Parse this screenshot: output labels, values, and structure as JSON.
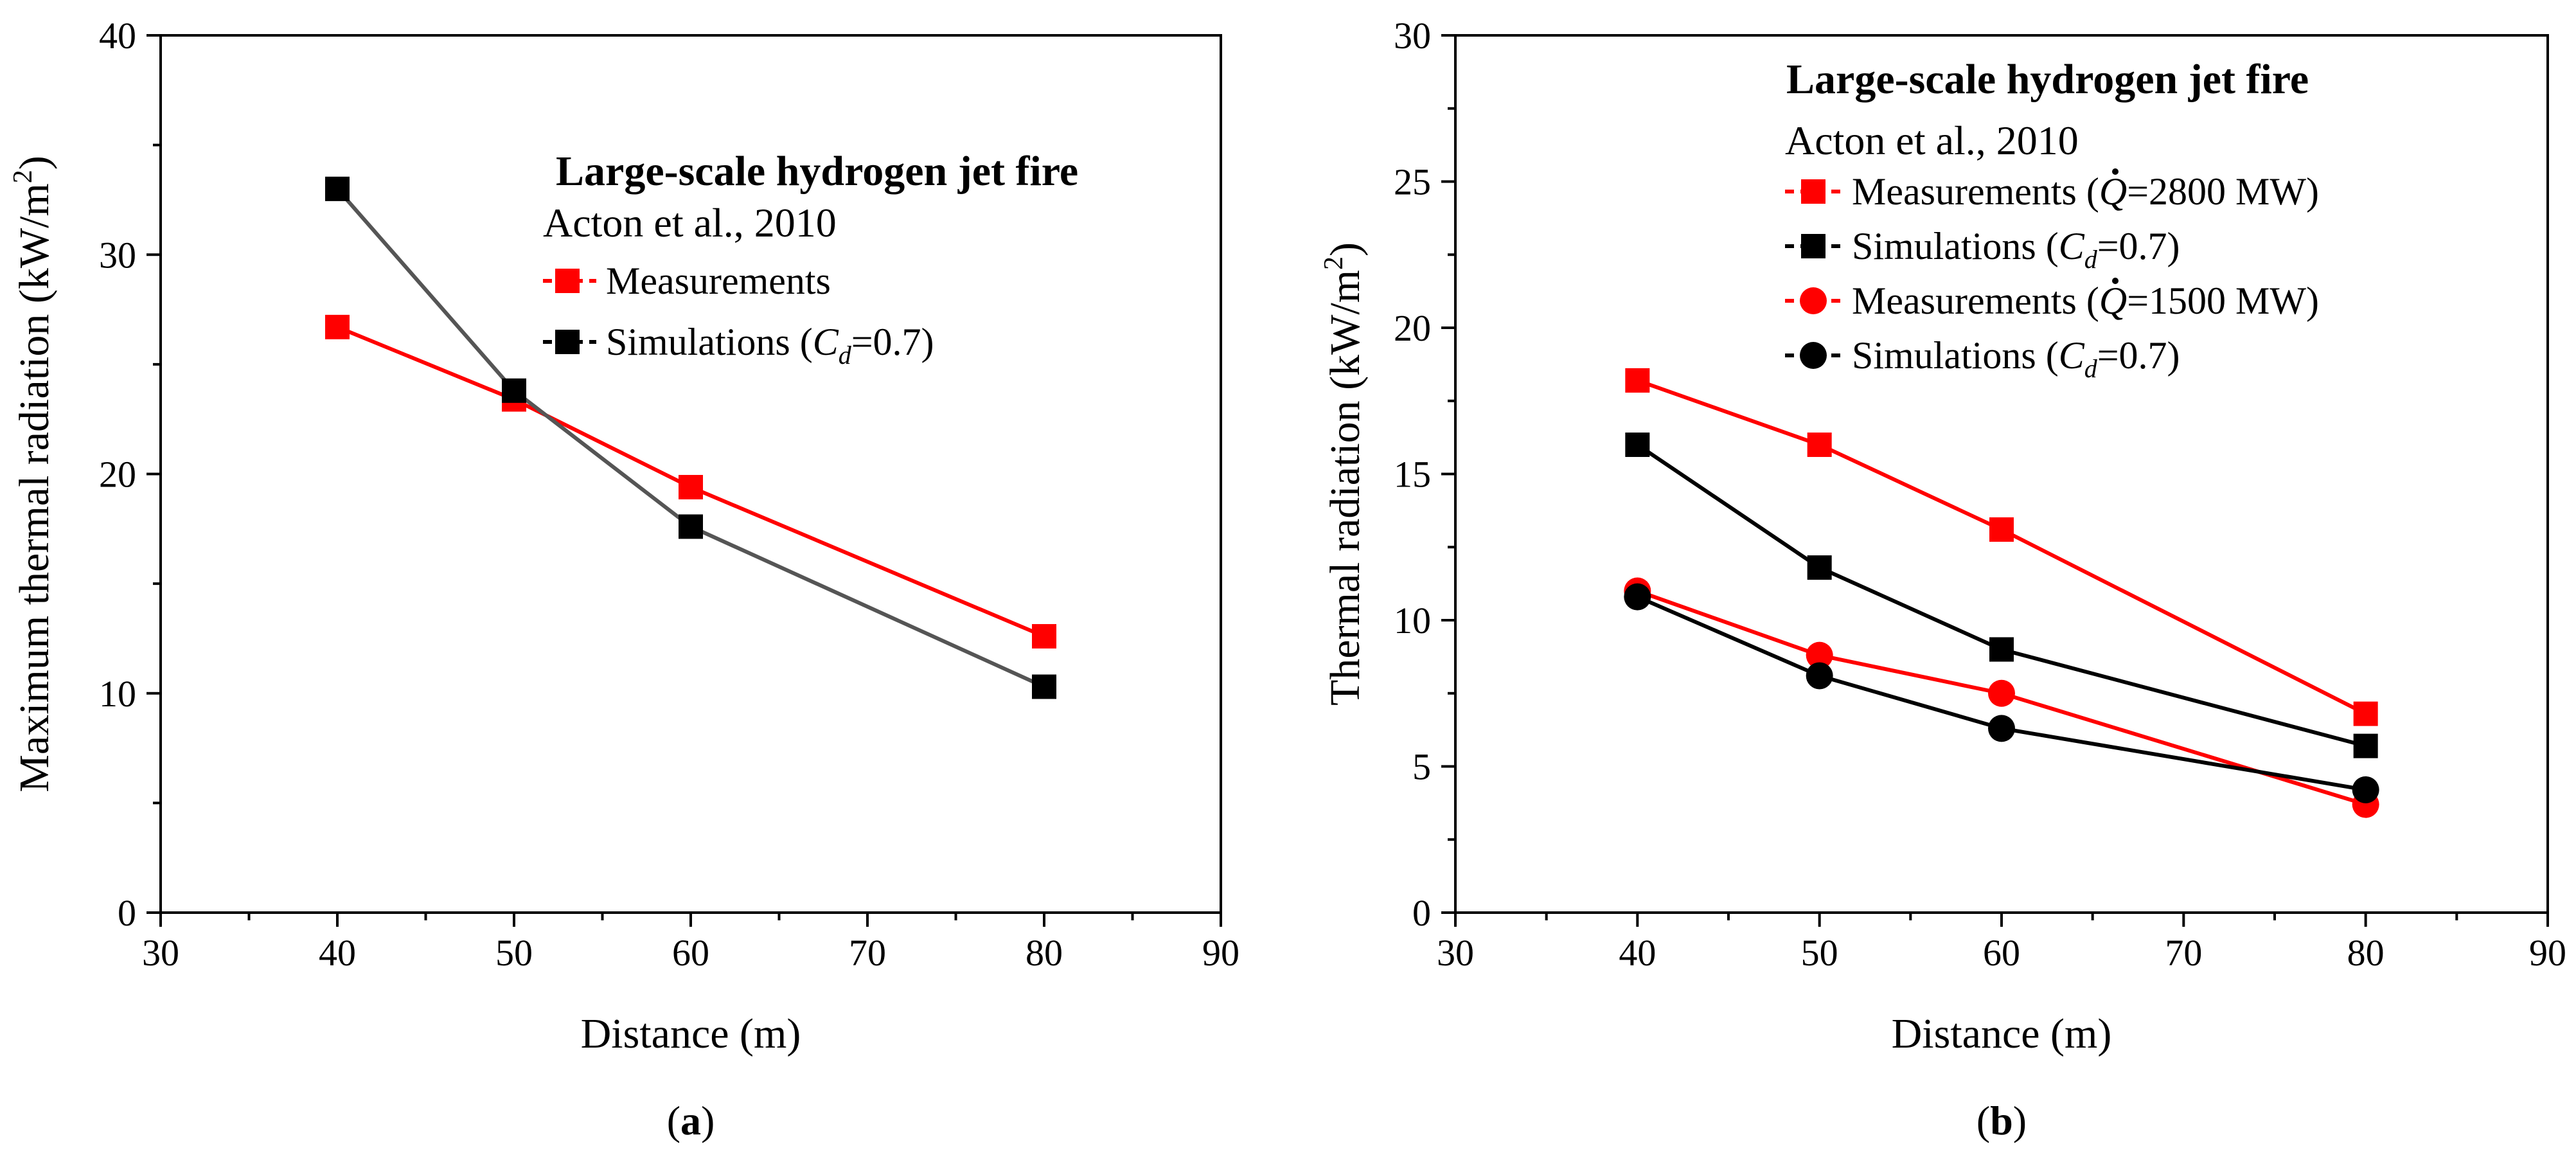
{
  "chart_data": [
    {
      "type": "line",
      "panel_label": "a",
      "xlabel": "Distance (m)",
      "ylabel": "Maximum thermal radiation (kW/m2)",
      "ylabel_main": "Maximum thermal radiation (kW/m",
      "ylabel_sup": "2",
      "ylabel_close": ")",
      "xlim": [
        30,
        90
      ],
      "ylim": [
        0,
        40
      ],
      "xticks": [
        30,
        40,
        50,
        60,
        70,
        80,
        90
      ],
      "yticks": [
        0,
        10,
        20,
        30,
        40
      ],
      "grid": false,
      "legend_position": "top-right",
      "legend_title": "Large-scale hydrogen jet fire",
      "legend_subtitle": "Acton et al., 2010",
      "series": [
        {
          "name": "Measurements",
          "legend_label": "Measurements",
          "color": "#ff0000",
          "marker": "square",
          "x": [
            40,
            50,
            60,
            80
          ],
          "y": [
            26.7,
            23.4,
            19.4,
            12.6
          ]
        },
        {
          "name": "Simulations (Cd=0.7)",
          "legend_label": "Simulations (",
          "legend_ital": "C",
          "legend_sub": "d",
          "legend_tail": "=0.7)",
          "color": "#000000",
          "line_color": "#555555",
          "marker": "square",
          "x": [
            40,
            50,
            60,
            80
          ],
          "y": [
            33.0,
            23.8,
            17.6,
            10.3
          ]
        }
      ]
    },
    {
      "type": "line",
      "panel_label": "b",
      "xlabel": "Distance (m)",
      "ylabel": "Thermal radiation (kW/m2)",
      "ylabel_main": "Thermal radiation (kW/m",
      "ylabel_sup": "2",
      "ylabel_close": ")",
      "xlim": [
        30,
        90
      ],
      "ylim": [
        0,
        30
      ],
      "xticks": [
        30,
        40,
        50,
        60,
        70,
        80,
        90
      ],
      "yticks": [
        0,
        5,
        10,
        15,
        20,
        25,
        30
      ],
      "grid": false,
      "legend_position": "top-right",
      "legend_title": "Large-scale hydrogen jet fire",
      "legend_subtitle": "Acton et al., 2010",
      "series": [
        {
          "name": "Measurements (Q=2800 MW)",
          "legend_label": "Measurements (",
          "legend_ital": "Q",
          "legend_tail": "=2800 MW)",
          "legend_dot": true,
          "color": "#ff0000",
          "marker": "square",
          "x": [
            40,
            50,
            60,
            80
          ],
          "y": [
            18.2,
            16.0,
            13.1,
            6.8
          ]
        },
        {
          "name": "Simulations (Cd=0.7)",
          "legend_label": "Simulations (",
          "legend_ital": "C",
          "legend_sub": "d",
          "legend_tail": "=0.7)",
          "color": "#000000",
          "marker": "square",
          "x": [
            40,
            50,
            60,
            80
          ],
          "y": [
            16.0,
            11.8,
            9.0,
            5.7
          ]
        },
        {
          "name": "Measurements (Q=1500 MW)",
          "legend_label": "Measurements (",
          "legend_ital": "Q",
          "legend_tail": "=1500 MW)",
          "legend_dot": true,
          "color": "#ff0000",
          "marker": "circle",
          "x": [
            40,
            50,
            60,
            80
          ],
          "y": [
            11.0,
            8.8,
            7.5,
            3.7
          ]
        },
        {
          "name": "Simulations (Cd=0.7)",
          "legend_label": "Simulations (",
          "legend_ital": "C",
          "legend_sub": "d",
          "legend_tail": "=0.7)",
          "color": "#000000",
          "marker": "circle",
          "x": [
            40,
            50,
            60,
            80
          ],
          "y": [
            10.8,
            8.1,
            6.3,
            4.2
          ]
        }
      ]
    }
  ]
}
